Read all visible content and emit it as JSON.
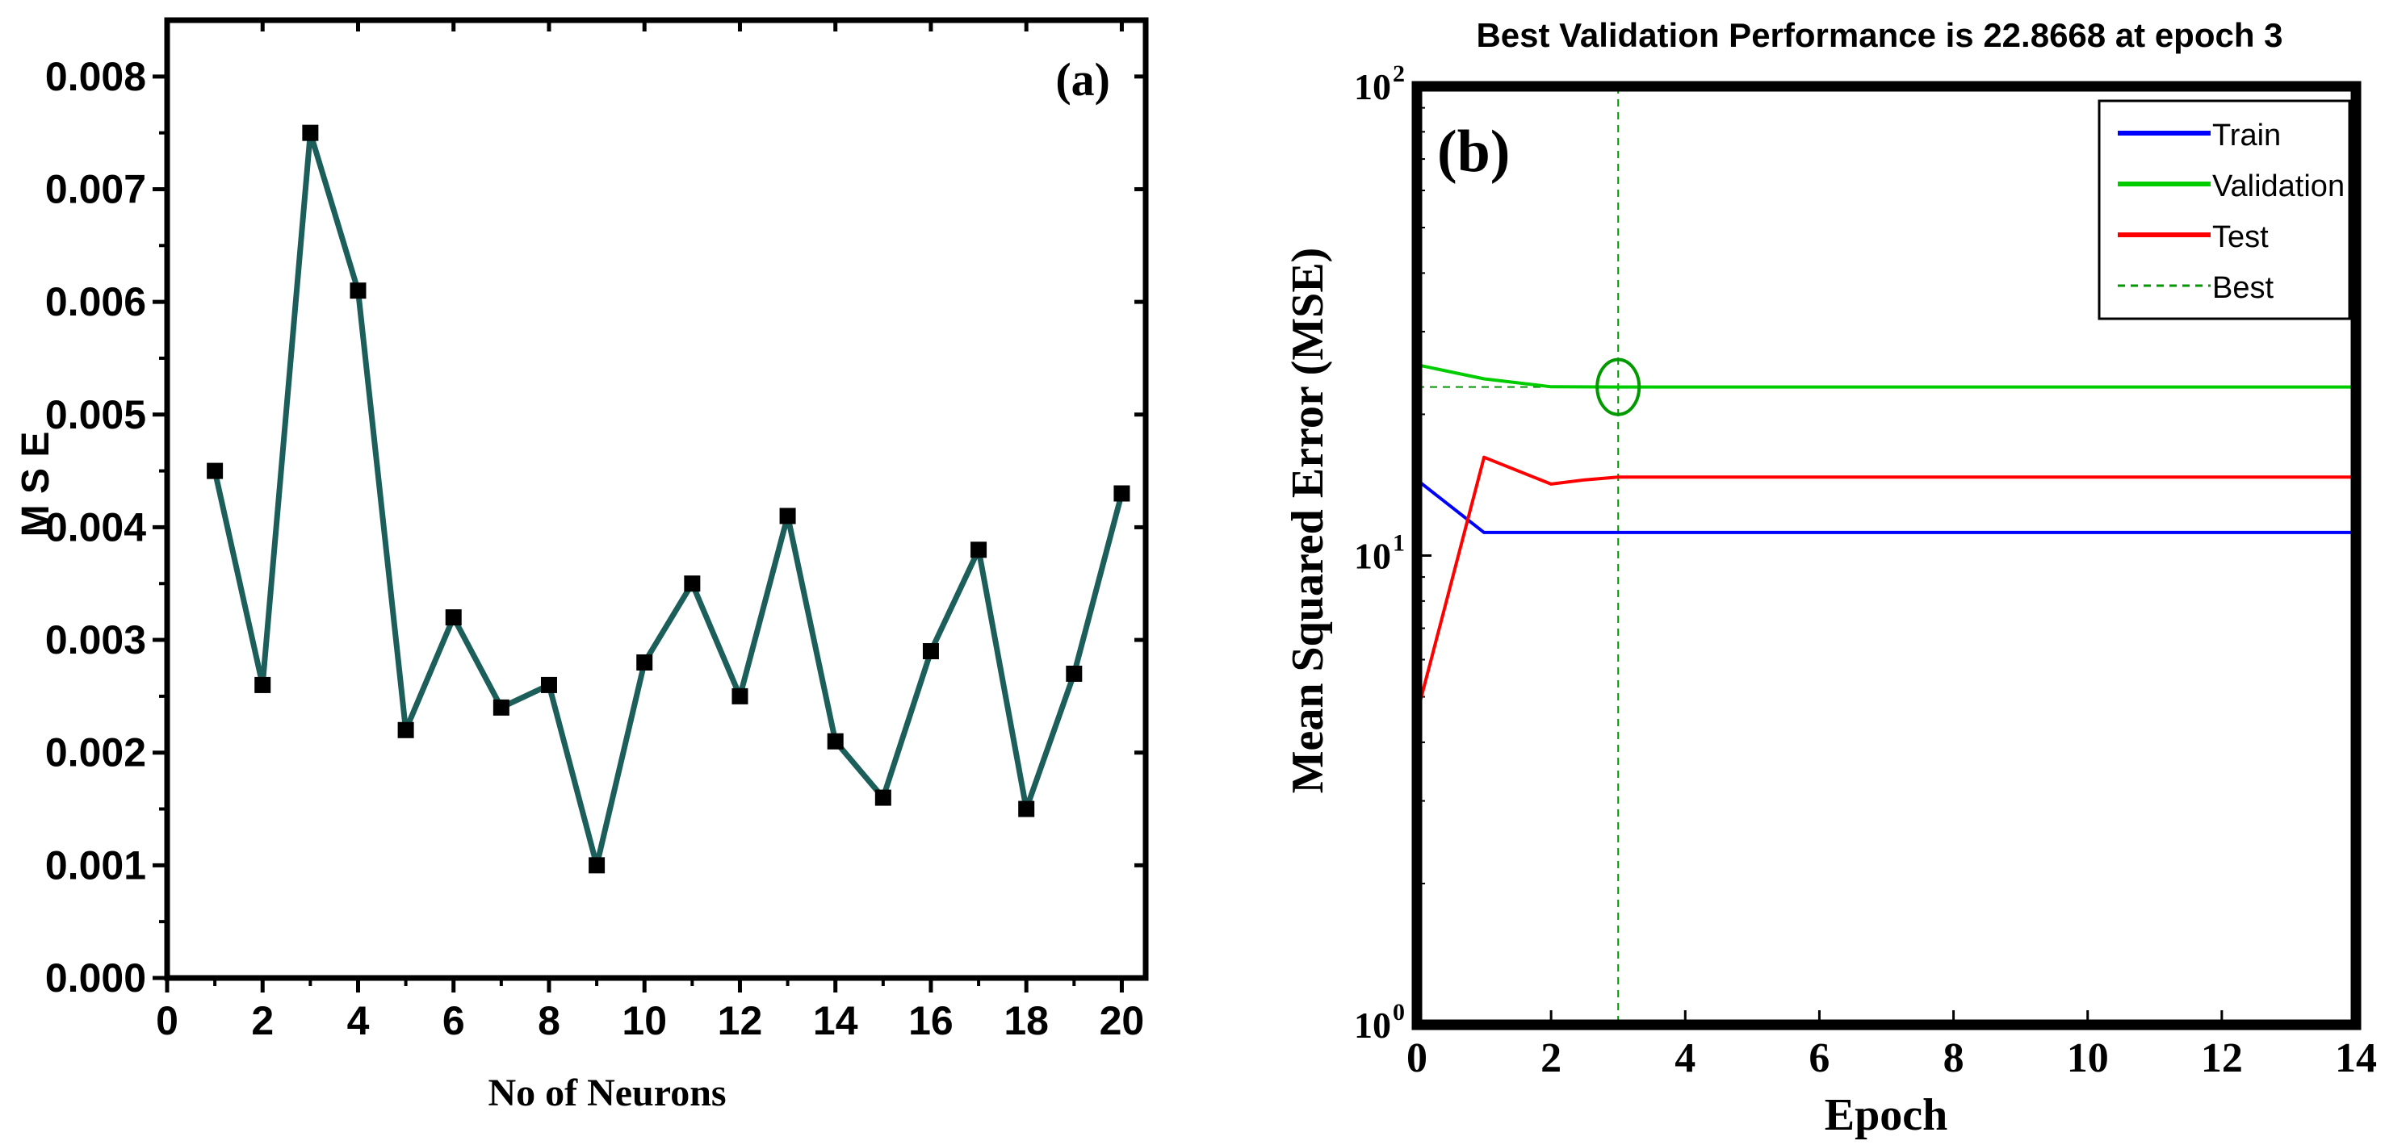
{
  "chart_data": [
    {
      "id": "a",
      "type": "line",
      "panel_label": "(a)",
      "title": "",
      "xlabel": "No of Neurons",
      "ylabel": "M S E",
      "xlim": [
        0,
        20.5
      ],
      "ylim": [
        0,
        0.0085
      ],
      "xticks": [
        0,
        2,
        4,
        6,
        8,
        10,
        12,
        14,
        16,
        18,
        20
      ],
      "xtick_labels": [
        "0",
        "2",
        "4",
        "6",
        "8",
        "10",
        "12",
        "14",
        "16",
        "18",
        "20"
      ],
      "yticks": [
        0,
        0.001,
        0.002,
        0.003,
        0.004,
        0.005,
        0.006,
        0.007,
        0.008
      ],
      "ytick_labels": [
        "0.000",
        "0.001",
        "0.002",
        "0.003",
        "0.004",
        "0.005",
        "0.006",
        "0.007",
        "0.008"
      ],
      "grid": false,
      "series": [
        {
          "name": "MSE",
          "color": "#1b5e5a",
          "marker": "square",
          "marker_color": "#000000",
          "x": [
            1,
            2,
            3,
            4,
            5,
            6,
            7,
            8,
            9,
            10,
            11,
            12,
            13,
            14,
            15,
            16,
            17,
            18,
            19,
            20
          ],
          "y": [
            0.0045,
            0.0026,
            0.0075,
            0.0061,
            0.0022,
            0.0032,
            0.0024,
            0.0026,
            0.001,
            0.0028,
            0.0035,
            0.0025,
            0.0041,
            0.0021,
            0.0016,
            0.0029,
            0.0038,
            0.0015,
            0.0027,
            0.0043
          ]
        }
      ]
    },
    {
      "id": "b",
      "type": "line",
      "panel_label": "(b)",
      "title": "Best Validation Performance is 22.8668 at epoch 3",
      "xlabel": "Epoch",
      "ylabel": "Mean Squared Error (MSE)",
      "yscale": "log",
      "xlim": [
        0,
        14
      ],
      "ylim": [
        1,
        100
      ],
      "xticks": [
        0,
        2,
        4,
        6,
        8,
        10,
        12,
        14
      ],
      "xtick_labels": [
        "0",
        "2",
        "4",
        "6",
        "8",
        "10",
        "12",
        "14"
      ],
      "yticks": [
        1,
        10,
        100
      ],
      "ytick_labels": [
        {
          "base": "10",
          "exp": "0"
        },
        {
          "base": "10",
          "exp": "1"
        },
        {
          "base": "10",
          "exp": "2"
        }
      ],
      "grid": false,
      "legend_position": "top-right",
      "series": [
        {
          "name": "Train",
          "color": "#0000ff",
          "style": "solid",
          "x": [
            0,
            1,
            2,
            3,
            4,
            5,
            6,
            7,
            8,
            9,
            10,
            11,
            12,
            13,
            14
          ],
          "y": [
            14.5,
            11.2,
            11.2,
            11.2,
            11.2,
            11.2,
            11.2,
            11.2,
            11.2,
            11.2,
            11.2,
            11.2,
            11.2,
            11.2,
            11.2
          ]
        },
        {
          "name": "Validation",
          "color": "#00cc00",
          "style": "solid",
          "x": [
            0,
            1,
            2,
            3,
            4,
            5,
            6,
            7,
            8,
            9,
            10,
            11,
            12,
            13,
            14
          ],
          "y": [
            25.5,
            23.8,
            22.9,
            22.87,
            22.87,
            22.87,
            22.87,
            22.87,
            22.87,
            22.87,
            22.87,
            22.87,
            22.87,
            22.87,
            22.87
          ]
        },
        {
          "name": "Test",
          "color": "#ff0000",
          "style": "solid",
          "x": [
            0,
            1,
            2,
            2.5,
            3,
            4,
            5,
            6,
            7,
            8,
            9,
            10,
            11,
            12,
            13,
            14
          ],
          "y": [
            4.6,
            16.2,
            14.2,
            14.5,
            14.7,
            14.7,
            14.7,
            14.7,
            14.7,
            14.7,
            14.7,
            14.7,
            14.7,
            14.7,
            14.7,
            14.7
          ]
        }
      ],
      "best": {
        "name": "Best",
        "color": "#009900",
        "style": "dashed",
        "epoch": 3,
        "value": 22.8668
      }
    }
  ]
}
